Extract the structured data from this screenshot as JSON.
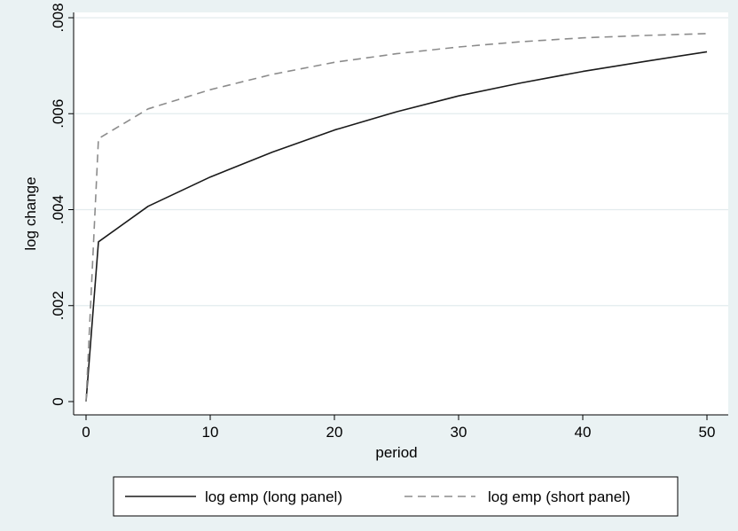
{
  "chart_data": {
    "type": "line",
    "title": "",
    "xlabel": "period",
    "ylabel": "log change",
    "xlim": [
      0,
      50
    ],
    "ylim": [
      0,
      0.008
    ],
    "xticks": [
      0,
      10,
      20,
      30,
      40,
      50
    ],
    "xtick_labels": [
      "0",
      "10",
      "20",
      "30",
      "40",
      "50"
    ],
    "yticks": [
      0,
      0.002,
      0.004,
      0.006,
      0.008
    ],
    "ytick_labels": [
      "0",
      ".002",
      ".004",
      ".006",
      ".008"
    ],
    "grid": "horizontal",
    "legend_position": "bottom",
    "x": [
      0,
      1,
      5,
      10,
      15,
      20,
      25,
      30,
      35,
      40,
      45,
      50
    ],
    "series": [
      {
        "name": "log emp (long panel)",
        "style": "solid",
        "color": "#1a1a1a",
        "values": [
          0,
          0.00333,
          0.00407,
          0.00468,
          0.0052,
          0.00566,
          0.00604,
          0.00637,
          0.00664,
          0.00688,
          0.00709,
          0.00729
        ]
      },
      {
        "name": "log emp (short panel)",
        "style": "dashed",
        "color": "#8c8c8c",
        "values": [
          0,
          0.00548,
          0.0061,
          0.0065,
          0.00682,
          0.00707,
          0.00725,
          0.00739,
          0.0075,
          0.00758,
          0.00763,
          0.00767
        ]
      }
    ]
  }
}
